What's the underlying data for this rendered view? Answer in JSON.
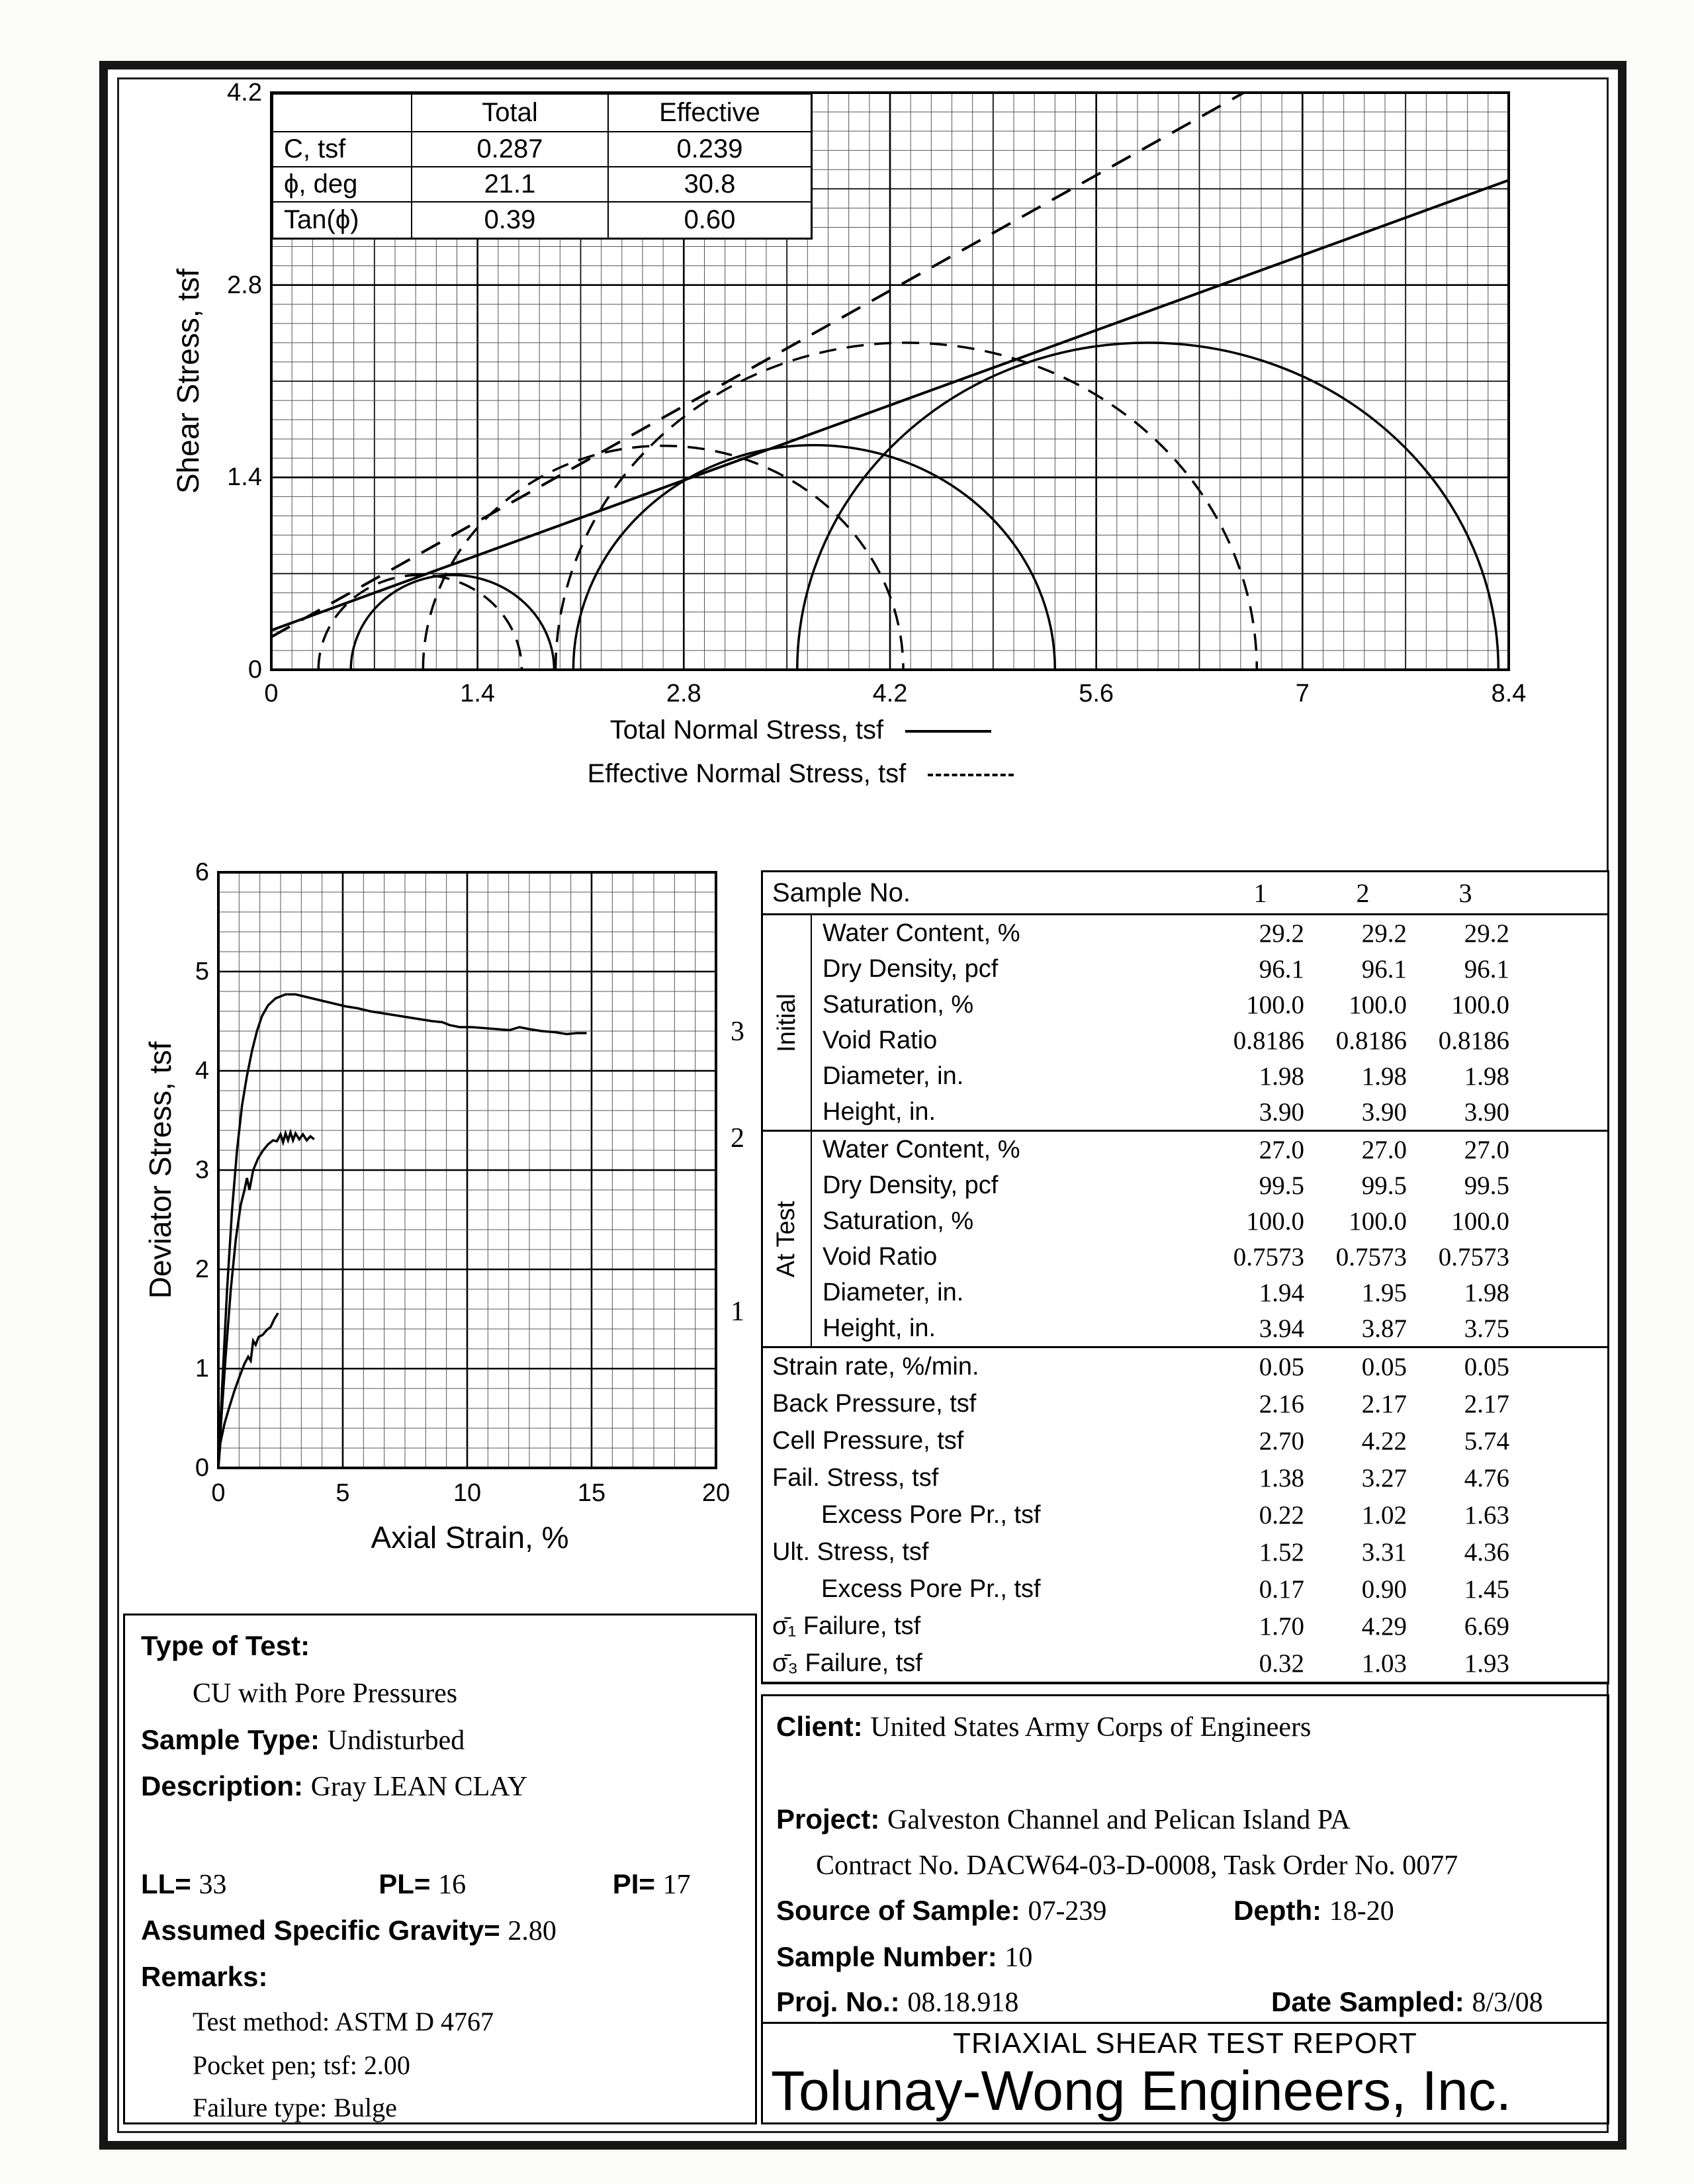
{
  "report": {
    "title": "TRIAXIAL SHEAR TEST REPORT",
    "company": "Tolunay-Wong Engineers, Inc."
  },
  "mohr_params": {
    "columns": [
      "Total",
      "Effective"
    ],
    "rows": [
      {
        "label": "C, tsf",
        "total": "0.287",
        "effective": "0.239"
      },
      {
        "label": "ϕ, deg",
        "total": "21.1",
        "effective": "30.8"
      },
      {
        "label": "Tan(ϕ)",
        "total": "0.39",
        "effective": "0.60"
      }
    ]
  },
  "chart_data": [
    {
      "id": "mohr_circles",
      "type": "line",
      "title": "",
      "ylabel": "Shear Stress, tsf",
      "xlim": [
        0,
        8.4
      ],
      "ylim": [
        0,
        4.2
      ],
      "x_ticks": [
        "0",
        "1.4",
        "2.8",
        "4.2",
        "5.6",
        "7",
        "8.4"
      ],
      "y_ticks": [
        "0",
        "1.4",
        "2.8",
        "4.2"
      ],
      "grid": {
        "x_divisions": 60,
        "y_divisions": 30,
        "medium_every": 5,
        "major_every": 10
      },
      "legend": [
        {
          "label": "Total Normal Stress, tsf",
          "style": "solid"
        },
        {
          "label": "Effective Normal Stress, tsf",
          "style": "dashed"
        }
      ],
      "envelopes": [
        {
          "name": "Total",
          "style": "solid",
          "cohesion": 0.287,
          "tan_phi": 0.39
        },
        {
          "name": "Effective",
          "style": "dashed",
          "cohesion": 0.239,
          "tan_phi": 0.6
        }
      ],
      "circles": [
        {
          "series": "Total",
          "style": "solid",
          "sigma3": 0.54,
          "sigma1": 1.92
        },
        {
          "series": "Total",
          "style": "solid",
          "sigma3": 2.05,
          "sigma1": 5.32
        },
        {
          "series": "Total",
          "style": "solid",
          "sigma3": 3.57,
          "sigma1": 8.33
        },
        {
          "series": "Effective",
          "style": "dashed",
          "sigma3": 0.32,
          "sigma1": 1.7
        },
        {
          "series": "Effective",
          "style": "dashed",
          "sigma3": 1.03,
          "sigma1": 4.29
        },
        {
          "series": "Effective",
          "style": "dashed",
          "sigma3": 1.93,
          "sigma1": 6.69
        }
      ]
    },
    {
      "id": "stress_strain",
      "type": "line",
      "title": "",
      "xlabel": "Axial Strain, %",
      "ylabel": "Deviator Stress, tsf",
      "xlim": [
        0,
        20
      ],
      "ylim": [
        0,
        6
      ],
      "x_ticks": [
        "0",
        "5",
        "10",
        "15",
        "20"
      ],
      "y_ticks": [
        "0",
        "1",
        "2",
        "3",
        "4",
        "5",
        "6"
      ],
      "grid": {
        "x_divisions": 24,
        "x_major_every": 6,
        "y_divisions": 30,
        "y_major_every": 5
      },
      "series": [
        {
          "name": "1",
          "points": [
            [
              0,
              0
            ],
            [
              0.08,
              0.25
            ],
            [
              0.25,
              0.45
            ],
            [
              0.45,
              0.62
            ],
            [
              0.65,
              0.78
            ],
            [
              0.85,
              0.92
            ],
            [
              1.05,
              1.05
            ],
            [
              1.2,
              1.12
            ],
            [
              1.3,
              1.08
            ],
            [
              1.4,
              1.28
            ],
            [
              1.5,
              1.24
            ],
            [
              1.62,
              1.32
            ],
            [
              1.78,
              1.34
            ],
            [
              1.95,
              1.39
            ],
            [
              2.1,
              1.42
            ],
            [
              2.25,
              1.5
            ],
            [
              2.4,
              1.56
            ]
          ]
        },
        {
          "name": "2",
          "points": [
            [
              0,
              0
            ],
            [
              0.12,
              0.5
            ],
            [
              0.3,
              1.15
            ],
            [
              0.5,
              1.8
            ],
            [
              0.7,
              2.3
            ],
            [
              0.9,
              2.65
            ],
            [
              1.05,
              2.8
            ],
            [
              1.15,
              2.92
            ],
            [
              1.25,
              2.8
            ],
            [
              1.4,
              3.0
            ],
            [
              1.6,
              3.12
            ],
            [
              1.8,
              3.2
            ],
            [
              2.0,
              3.26
            ],
            [
              2.2,
              3.3
            ],
            [
              2.35,
              3.29
            ],
            [
              2.5,
              3.36
            ],
            [
              2.6,
              3.28
            ],
            [
              2.7,
              3.37
            ],
            [
              2.8,
              3.3
            ],
            [
              2.9,
              3.38
            ],
            [
              3.0,
              3.3
            ],
            [
              3.1,
              3.37
            ],
            [
              3.25,
              3.31
            ],
            [
              3.4,
              3.36
            ],
            [
              3.55,
              3.3
            ],
            [
              3.7,
              3.34
            ],
            [
              3.85,
              3.31
            ]
          ]
        },
        {
          "name": "3",
          "points": [
            [
              0,
              0
            ],
            [
              0.15,
              0.8
            ],
            [
              0.35,
              1.8
            ],
            [
              0.55,
              2.6
            ],
            [
              0.75,
              3.2
            ],
            [
              0.95,
              3.65
            ],
            [
              1.15,
              3.95
            ],
            [
              1.35,
              4.2
            ],
            [
              1.55,
              4.4
            ],
            [
              1.75,
              4.55
            ],
            [
              2.0,
              4.66
            ],
            [
              2.3,
              4.73
            ],
            [
              2.7,
              4.77
            ],
            [
              3.1,
              4.77
            ],
            [
              3.6,
              4.74
            ],
            [
              4.1,
              4.71
            ],
            [
              4.6,
              4.68
            ],
            [
              5.1,
              4.65
            ],
            [
              5.6,
              4.63
            ],
            [
              6.1,
              4.6
            ],
            [
              6.6,
              4.58
            ],
            [
              7.1,
              4.56
            ],
            [
              7.6,
              4.54
            ],
            [
              8.1,
              4.52
            ],
            [
              8.6,
              4.5
            ],
            [
              9.0,
              4.49
            ],
            [
              9.3,
              4.46
            ],
            [
              9.7,
              4.44
            ],
            [
              10.2,
              4.44
            ],
            [
              10.7,
              4.43
            ],
            [
              11.2,
              4.42
            ],
            [
              11.7,
              4.41
            ],
            [
              12.1,
              4.44
            ],
            [
              12.5,
              4.42
            ],
            [
              13.0,
              4.4
            ],
            [
              13.5,
              4.39
            ],
            [
              14.0,
              4.37
            ],
            [
              14.4,
              4.38
            ],
            [
              14.8,
              4.38
            ]
          ]
        }
      ]
    }
  ],
  "sample_table": {
    "header": {
      "label": "Sample No.",
      "cols": [
        "1",
        "2",
        "3"
      ]
    },
    "groups": [
      {
        "label": "Initial",
        "rows": [
          {
            "label": "Water Content, %",
            "values": [
              "29.2",
              "29.2",
              "29.2"
            ]
          },
          {
            "label": "Dry Density, pcf",
            "values": [
              "96.1",
              "96.1",
              "96.1"
            ]
          },
          {
            "label": "Saturation, %",
            "values": [
              "100.0",
              "100.0",
              "100.0"
            ]
          },
          {
            "label": "Void Ratio",
            "values": [
              "0.8186",
              "0.8186",
              "0.8186"
            ]
          },
          {
            "label": "Diameter, in.",
            "values": [
              "1.98",
              "1.98",
              "1.98"
            ]
          },
          {
            "label": "Height, in.",
            "values": [
              "3.90",
              "3.90",
              "3.90"
            ]
          }
        ]
      },
      {
        "label": "At Test",
        "rows": [
          {
            "label": "Water Content, %",
            "values": [
              "27.0",
              "27.0",
              "27.0"
            ]
          },
          {
            "label": "Dry Density, pcf",
            "values": [
              "99.5",
              "99.5",
              "99.5"
            ]
          },
          {
            "label": "Saturation, %",
            "values": [
              "100.0",
              "100.0",
              "100.0"
            ]
          },
          {
            "label": "Void Ratio",
            "values": [
              "0.7573",
              "0.7573",
              "0.7573"
            ]
          },
          {
            "label": "Diameter, in.",
            "values": [
              "1.94",
              "1.95",
              "1.98"
            ]
          },
          {
            "label": "Height, in.",
            "values": [
              "3.94",
              "3.87",
              "3.75"
            ]
          }
        ]
      }
    ],
    "rows": [
      {
        "label": "Strain rate, %/min.",
        "indent": false,
        "values": [
          "0.05",
          "0.05",
          "0.05"
        ]
      },
      {
        "label": "Back Pressure, tsf",
        "indent": false,
        "values": [
          "2.16",
          "2.17",
          "2.17"
        ]
      },
      {
        "label": "Cell Pressure, tsf",
        "indent": false,
        "values": [
          "2.70",
          "4.22",
          "5.74"
        ]
      },
      {
        "label": "Fail. Stress, tsf",
        "indent": false,
        "values": [
          "1.38",
          "3.27",
          "4.76"
        ]
      },
      {
        "label": "Excess Pore Pr., tsf",
        "indent": true,
        "values": [
          "0.22",
          "1.02",
          "1.63"
        ]
      },
      {
        "label": "Ult. Stress, tsf",
        "indent": false,
        "values": [
          "1.52",
          "3.31",
          "4.36"
        ]
      },
      {
        "label": "Excess Pore Pr., tsf",
        "indent": true,
        "values": [
          "0.17",
          "0.90",
          "1.45"
        ]
      },
      {
        "label": "σ̄₁  Failure, tsf",
        "indent": false,
        "values": [
          "1.70",
          "4.29",
          "6.69"
        ]
      },
      {
        "label": "σ̄₃  Failure, tsf",
        "indent": false,
        "values": [
          "0.32",
          "1.03",
          "1.93"
        ]
      }
    ]
  },
  "test_info": {
    "type_of_test_label": "Type of Test:",
    "type_of_test_value": "CU with Pore Pressures",
    "sample_type_label": "Sample Type:",
    "sample_type_value": "Undisturbed",
    "description_label": "Description:",
    "description_value": "Gray LEAN CLAY",
    "ll_label": "LL=",
    "ll_value": "33",
    "pl_label": "PL=",
    "pl_value": "16",
    "pi_label": "PI=",
    "pi_value": "17",
    "gravity_label": "Assumed Specific Gravity=",
    "gravity_value": "2.80",
    "remarks_label": "Remarks:",
    "remarks": [
      "Test method: ASTM D 4767",
      "Pocket pen; tsf: 2.00",
      "Failure type: Bulge"
    ]
  },
  "project_info": {
    "client_label": "Client:",
    "client": "United States Army Corps of Engineers",
    "project_label": "Project:",
    "project": "Galveston Channel and Pelican Island PA",
    "contract": "Contract No. DACW64-03-D-0008, Task Order No. 0077",
    "source_label": "Source of Sample:",
    "source": "07-239",
    "depth_label": "Depth:",
    "depth": "18-20",
    "sample_number_label": "Sample Number:",
    "sample_number": "10",
    "proj_no_label": "Proj. No.:",
    "proj_no": "08.18.918",
    "date_label": "Date Sampled:",
    "date": "8/3/08"
  }
}
